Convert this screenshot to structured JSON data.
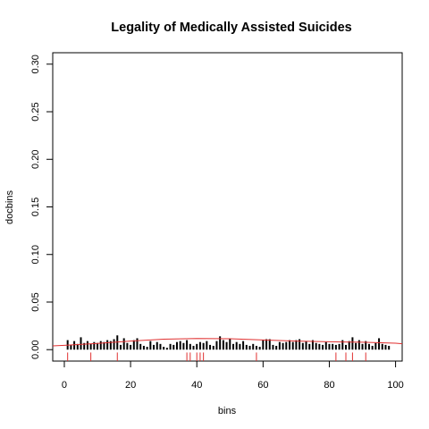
{
  "chart_data": {
    "type": "bar",
    "title": "Legality of Medically Assisted Suicides",
    "xlabel": "bins",
    "ylabel": "docbins",
    "xlim": [
      -3.5,
      102
    ],
    "ylim": [
      -0.012,
      0.312
    ],
    "x_ticks": [
      0,
      20,
      40,
      60,
      80,
      100
    ],
    "x_tick_labels": [
      "0",
      "20",
      "40",
      "60",
      "80",
      "100"
    ],
    "y_ticks": [
      0.0,
      0.05,
      0.1,
      0.15,
      0.2,
      0.25,
      0.3
    ],
    "y_tick_labels": [
      "0.00",
      "0.05",
      "0.10",
      "0.15",
      "0.20",
      "0.25",
      "0.30"
    ],
    "bins": [
      1,
      2,
      3,
      4,
      5,
      6,
      7,
      8,
      9,
      10,
      11,
      12,
      13,
      14,
      15,
      16,
      17,
      18,
      19,
      20,
      21,
      22,
      23,
      24,
      25,
      26,
      27,
      28,
      29,
      30,
      31,
      32,
      33,
      34,
      35,
      36,
      37,
      38,
      39,
      40,
      41,
      42,
      43,
      44,
      45,
      46,
      47,
      48,
      49,
      50,
      51,
      52,
      53,
      54,
      55,
      56,
      57,
      58,
      59,
      60,
      61,
      62,
      63,
      64,
      65,
      66,
      67,
      68,
      69,
      70,
      71,
      72,
      73,
      74,
      75,
      76,
      77,
      78,
      79,
      80,
      81,
      82,
      83,
      84,
      85,
      86,
      87,
      88,
      89,
      90,
      91,
      92,
      93,
      94,
      95,
      96,
      97,
      98
    ],
    "values": [
      0.01,
      0.005,
      0.009,
      0.006,
      0.013,
      0.007,
      0.009,
      0.006,
      0.008,
      0.007,
      0.009,
      0.008,
      0.01,
      0.009,
      0.011,
      0.015,
      0.005,
      0.012,
      0.007,
      0.005,
      0.01,
      0.012,
      0.006,
      0.004,
      0.003,
      0.009,
      0.005,
      0.008,
      0.006,
      0.003,
      0.002,
      0.006,
      0.005,
      0.008,
      0.009,
      0.007,
      0.01,
      0.006,
      0.004,
      0.006,
      0.008,
      0.007,
      0.009,
      0.005,
      0.004,
      0.009,
      0.014,
      0.01,
      0.008,
      0.011,
      0.006,
      0.008,
      0.006,
      0.009,
      0.005,
      0.004,
      0.006,
      0.004,
      0.003,
      0.01,
      0.011,
      0.011,
      0.005,
      0.004,
      0.008,
      0.007,
      0.008,
      0.01,
      0.008,
      0.01,
      0.011,
      0.007,
      0.009,
      0.006,
      0.01,
      0.007,
      0.006,
      0.005,
      0.008,
      0.006,
      0.006,
      0.005,
      0.006,
      0.01,
      0.005,
      0.009,
      0.013,
      0.007,
      0.01,
      0.006,
      0.009,
      0.006,
      0.004,
      0.007,
      0.012,
      0.006,
      0.005,
      0.004
    ],
    "bar_color": "#000000",
    "smooth_curve": {
      "color": "#e03030",
      "x": [
        -3.5,
        0,
        10,
        20,
        30,
        40,
        50,
        60,
        70,
        80,
        90,
        100,
        102
      ],
      "y": [
        0.004,
        0.0045,
        0.0065,
        0.009,
        0.011,
        0.0118,
        0.0115,
        0.0102,
        0.009,
        0.0083,
        0.0078,
        0.0068,
        0.0062
      ]
    },
    "rug": {
      "color": "#e03030",
      "x": [
        1,
        8,
        16,
        37,
        38,
        40,
        41,
        42,
        58,
        82,
        85,
        87,
        91
      ],
      "y_top": -0.003,
      "y_bottom": -0.012
    },
    "grid": false,
    "legend": "none"
  }
}
